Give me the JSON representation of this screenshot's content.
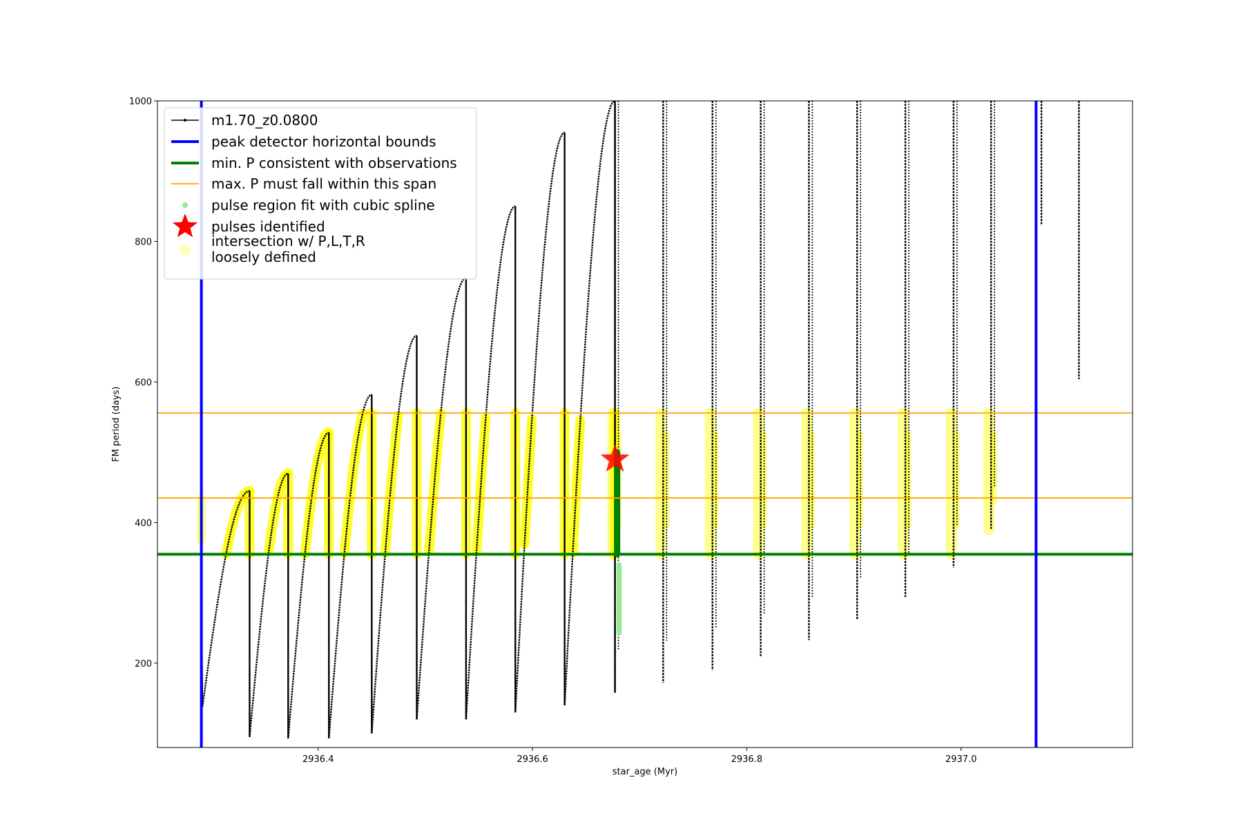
{
  "chart_data": {
    "type": "line",
    "title": "",
    "xlabel": "star_age (Myr)",
    "ylabel": "FM period (days)",
    "xlim": [
      2936.25,
      2937.16
    ],
    "ylim": [
      80,
      1000
    ],
    "xticks": [
      2936.4,
      2936.6,
      2936.8,
      2937.0
    ],
    "xtick_labels": [
      "2936.4",
      "2936.6",
      "2936.8",
      "2937.0"
    ],
    "yticks": [
      200,
      400,
      600,
      800,
      1000
    ],
    "ytick_labels": [
      "200",
      "400",
      "600",
      "800",
      "1000"
    ],
    "grid": false,
    "legend_position": "top-left",
    "legend": [
      {
        "label": "m1.70_z0.0800",
        "kind": "line-marker",
        "color": "#000000"
      },
      {
        "label": "peak detector horizontal bounds",
        "kind": "thick-line",
        "color": "#0000ff"
      },
      {
        "label": "min. P consistent with observations",
        "kind": "thick-line",
        "color": "#008000"
      },
      {
        "label": "max. P must fall within this span",
        "kind": "thin-line",
        "color": "#ffa500"
      },
      {
        "label": "pulse region fit with cubic spline",
        "kind": "dot",
        "color": "#90ee90"
      },
      {
        "label": "pulses identified",
        "kind": "star",
        "color": "#ff0000"
      },
      {
        "label": "intersection w/ P,L,T,R\nloosely defined",
        "kind": "blob",
        "color": "#ffff99"
      }
    ],
    "colors": {
      "model": "#000000",
      "bounds": "#0000ff",
      "min_p": "#008000",
      "span": "#ffa500",
      "spline": "#90ee90",
      "pulse": "#ff0000",
      "intersection": "#ffff00"
    },
    "vlines": [
      2936.291,
      2937.07
    ],
    "hline_min_p": 355,
    "hlines_span": [
      435,
      556
    ],
    "pulses": [
      {
        "start": 2936.292,
        "end": 2936.336,
        "from": 138,
        "peak": 445
      },
      {
        "start": 2936.336,
        "end": 2936.372,
        "from": 95,
        "peak": 470
      },
      {
        "start": 2936.372,
        "end": 2936.41,
        "from": 93,
        "peak": 528
      },
      {
        "start": 2936.41,
        "end": 2936.45,
        "from": 93,
        "peak": 582
      },
      {
        "start": 2936.45,
        "end": 2936.492,
        "from": 100,
        "peak": 666
      },
      {
        "start": 2936.492,
        "end": 2936.538,
        "from": 120,
        "peak": 748
      },
      {
        "start": 2936.538,
        "end": 2936.584,
        "from": 120,
        "peak": 850
      },
      {
        "start": 2936.584,
        "end": 2936.63,
        "from": 130,
        "peak": 955
      },
      {
        "start": 2936.63,
        "end": 2936.677,
        "from": 140,
        "peak": 1000
      }
    ],
    "late_spikes": [
      {
        "x": 2936.677,
        "from": 158,
        "top": 1000
      },
      {
        "x": 2936.722,
        "from": 172,
        "top": 1000
      },
      {
        "x": 2936.768,
        "from": 190,
        "top": 1000
      },
      {
        "x": 2936.813,
        "from": 210,
        "top": 1000
      },
      {
        "x": 2936.858,
        "from": 233,
        "top": 1000
      },
      {
        "x": 2936.903,
        "from": 262,
        "top": 1000
      },
      {
        "x": 2936.948,
        "from": 294,
        "top": 1000
      },
      {
        "x": 2936.993,
        "from": 336,
        "top": 1000
      },
      {
        "x": 2937.028,
        "from": 390,
        "top": 1000
      },
      {
        "x": 2937.075,
        "from": 823,
        "top": 1000
      },
      {
        "x": 2937.11,
        "from": 604,
        "top": 1000
      }
    ],
    "spline_region": {
      "x": 2936.679,
      "from": 243,
      "to": 500
    },
    "pulse_identified": {
      "x": 2936.677,
      "y": 490
    }
  }
}
